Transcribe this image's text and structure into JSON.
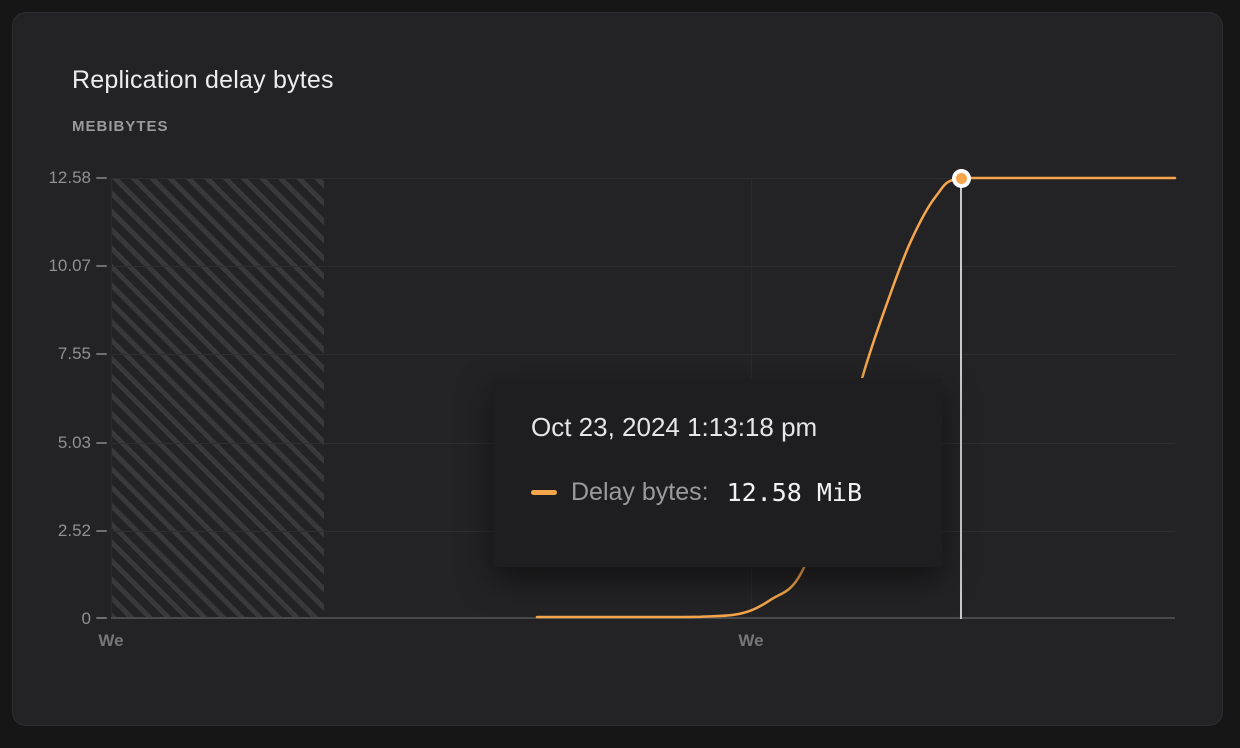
{
  "card": {
    "title": "Replication delay bytes",
    "units_label": "MEBIBYTES"
  },
  "chart_data": {
    "type": "line",
    "title": "Replication delay bytes",
    "ylabel": "MEBIBYTES",
    "ylim": [
      0,
      12.58
    ],
    "y_ticks": [
      "12.58",
      "10.07",
      "7.55",
      "5.03",
      "2.52",
      "0"
    ],
    "y_tick_values": [
      12.58,
      10.07,
      7.55,
      5.03,
      2.52,
      0
    ],
    "x_ticks": [
      "We",
      "We"
    ],
    "x_tick_positions": [
      0,
      0.6015
    ],
    "grid": true,
    "no_data_region": {
      "x_from": 0,
      "x_to": 0.2,
      "pattern": "diagonal-hatch"
    },
    "series": [
      {
        "name": "Delay bytes",
        "unit": "MiB",
        "color": "#f5a64c",
        "points": [
          [
            0.4004,
            0.0
          ],
          [
            0.4605,
            0.0
          ],
          [
            0.5169,
            0.0
          ],
          [
            0.5545,
            0.01
          ],
          [
            0.5921,
            0.1
          ],
          [
            0.6203,
            0.5
          ],
          [
            0.6485,
            1.25
          ],
          [
            0.6814,
            3.94
          ],
          [
            0.7068,
            6.93
          ],
          [
            0.7303,
            9.07
          ],
          [
            0.7519,
            10.78
          ],
          [
            0.7754,
            12.06
          ],
          [
            0.7989,
            12.58
          ],
          [
            0.874,
            12.58
          ],
          [
            1.0,
            12.58
          ]
        ]
      }
    ],
    "hover_point": {
      "x": 0.7989,
      "value": 12.58,
      "value_label": "12.58 MiB"
    }
  },
  "tooltip": {
    "timestamp": "Oct 23, 2024 1:13:18 pm",
    "series_label": "Delay bytes:",
    "value": "12.58 MiB",
    "swatch_color": "#f5a64c"
  },
  "colors": {
    "page_bg": "#161616",
    "card_bg": "#232325",
    "series_orange": "#f5a64c",
    "gridline": "#2e2e30",
    "axis_line": "#4a4a4d",
    "hover_line": "#c9c9c9",
    "text_primary": "#ececec",
    "text_muted": "#9a9a9a"
  }
}
